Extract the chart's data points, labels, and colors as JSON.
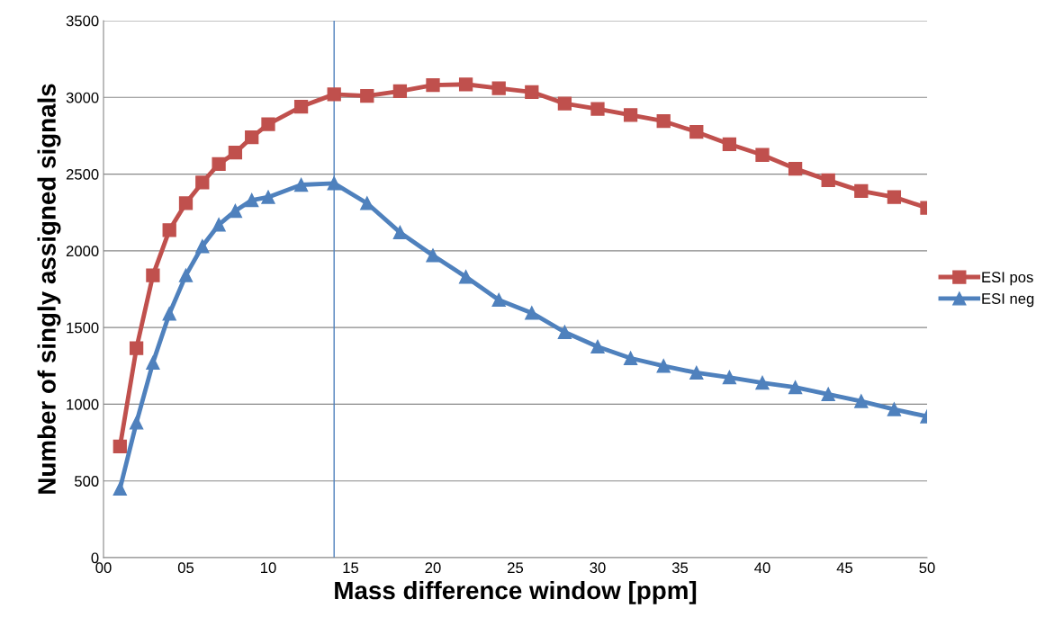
{
  "chart_data": {
    "type": "line",
    "xlabel": "Mass difference window [ppm]",
    "ylabel": "Number of singly assigned signals",
    "x": [
      1,
      2,
      3,
      4,
      5,
      6,
      7,
      8,
      9,
      10,
      12,
      14,
      16,
      18,
      20,
      22,
      24,
      26,
      28,
      30,
      32,
      34,
      36,
      38,
      40,
      42,
      44,
      46,
      48,
      50
    ],
    "series": [
      {
        "name": "ESI pos",
        "color": "#c0504d",
        "marker": "square",
        "values": [
          725,
          1365,
          1840,
          2135,
          2310,
          2445,
          2565,
          2640,
          2740,
          2825,
          2940,
          3020,
          3010,
          3040,
          3080,
          3085,
          3060,
          3035,
          2960,
          2925,
          2885,
          2845,
          2775,
          2695,
          2625,
          2535,
          2460,
          2390,
          2350,
          2280
        ]
      },
      {
        "name": "ESI neg",
        "color": "#4f81bd",
        "marker": "triangle",
        "values": [
          450,
          880,
          1270,
          1590,
          1840,
          2030,
          2170,
          2260,
          2330,
          2350,
          2430,
          2440,
          2310,
          2120,
          1970,
          1830,
          1680,
          1595,
          1470,
          1375,
          1300,
          1250,
          1205,
          1175,
          1140,
          1110,
          1065,
          1020,
          967,
          920
        ]
      }
    ],
    "xlim": [
      0,
      50
    ],
    "xticks": [
      {
        "value": 0,
        "label": "00"
      },
      {
        "value": 5,
        "label": "05"
      },
      10,
      15,
      20,
      25,
      30,
      35,
      40,
      45,
      50
    ],
    "ylim": [
      0,
      3500
    ],
    "yticks": [
      0,
      500,
      1000,
      1500,
      2000,
      2500,
      3000,
      3500
    ],
    "ref_lines": [
      {
        "axis": "x",
        "value": 14,
        "color": "#4f81bd"
      }
    ],
    "grid": "y",
    "legend": "right",
    "line_style": "solid"
  }
}
